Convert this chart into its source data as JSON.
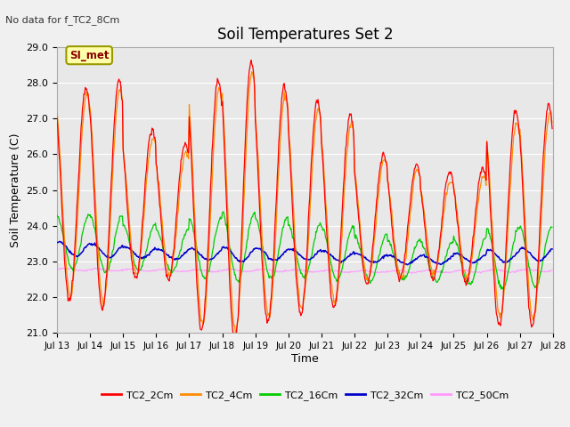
{
  "title": "Soil Temperatures Set 2",
  "subtitle": "No data for f_TC2_8Cm",
  "xlabel": "Time",
  "ylabel": "Soil Temperature (C)",
  "ylim": [
    21.0,
    29.0
  ],
  "yticks": [
    21.0,
    22.0,
    23.0,
    24.0,
    25.0,
    26.0,
    27.0,
    28.0,
    29.0
  ],
  "xtick_labels": [
    "Jul 13",
    "Jul 14",
    "Jul 15",
    "Jul 16",
    "Jul 17",
    "Jul 18",
    "Jul 19",
    "Jul 20",
    "Jul 21",
    "Jul 22",
    "Jul 23",
    "Jul 24",
    "Jul 25",
    "Jul 26",
    "Jul 27",
    "Jul 28"
  ],
  "legend_label": "SI_met",
  "series_colors": {
    "TC2_2Cm": "#ff0000",
    "TC2_4Cm": "#ff8c00",
    "TC2_16Cm": "#00cc00",
    "TC2_32Cm": "#0000cc",
    "TC2_50Cm": "#ff99ff"
  },
  "fig_bg": "#f0f0f0",
  "plot_bg": "#e8e8e8",
  "grid_color": "#ffffff",
  "n_days": 15,
  "daily_amps_2cm": [
    3.0,
    3.2,
    2.1,
    1.9,
    3.5,
    3.9,
    3.3,
    3.0,
    2.7,
    1.8,
    1.6,
    1.5,
    1.6,
    3.0,
    3.1
  ],
  "daily_amps_4cm": [
    2.8,
    3.0,
    1.9,
    1.7,
    3.3,
    3.6,
    3.1,
    2.8,
    2.5,
    1.7,
    1.5,
    1.3,
    1.4,
    2.7,
    2.9
  ],
  "daily_amps_16cm": [
    0.75,
    0.8,
    0.65,
    0.6,
    0.85,
    0.95,
    0.85,
    0.75,
    0.75,
    0.65,
    0.55,
    0.55,
    0.65,
    0.85,
    0.85
  ],
  "daily_amps_32cm": [
    0.2,
    0.18,
    0.15,
    0.14,
    0.16,
    0.2,
    0.17,
    0.15,
    0.14,
    0.12,
    0.12,
    0.12,
    0.13,
    0.17,
    0.17
  ],
  "daily_base_2cm": [
    24.9,
    24.9,
    24.6,
    24.4,
    24.6,
    24.7,
    24.6,
    24.5,
    24.4,
    24.2,
    24.1,
    24.0,
    24.0,
    24.2,
    24.3
  ],
  "daily_base_16cm": [
    23.55,
    23.5,
    23.4,
    23.3,
    23.38,
    23.42,
    23.38,
    23.3,
    23.25,
    23.1,
    23.05,
    23.0,
    23.0,
    23.1,
    23.15
  ],
  "daily_base_32cm": [
    23.35,
    23.3,
    23.25,
    23.2,
    23.2,
    23.2,
    23.2,
    23.2,
    23.15,
    23.1,
    23.05,
    23.05,
    23.1,
    23.15,
    23.2
  ],
  "daily_base_50cm": [
    22.78,
    22.77,
    22.76,
    22.75,
    22.75,
    22.75,
    22.75,
    22.74,
    22.73,
    22.72,
    22.72,
    22.72,
    22.73,
    22.74,
    22.75
  ]
}
